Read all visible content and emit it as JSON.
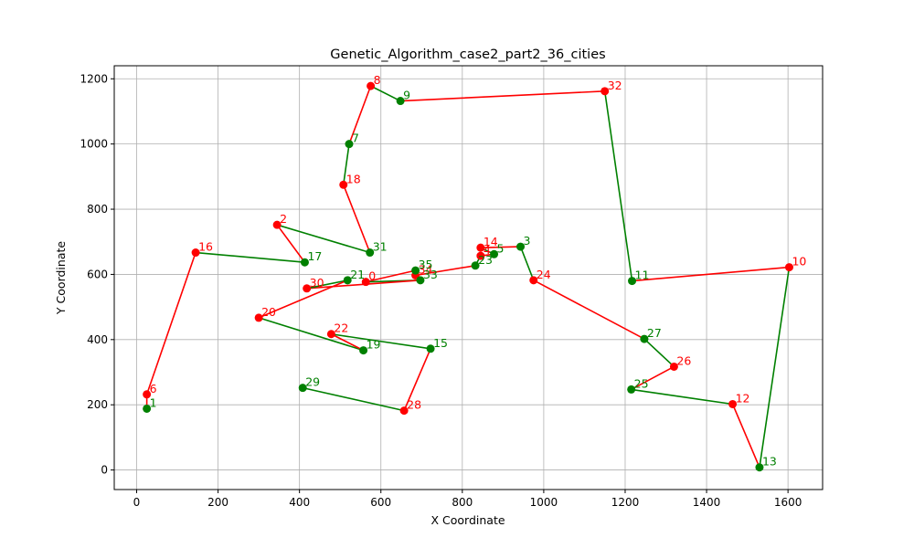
{
  "chart_data": {
    "type": "line",
    "title": "Genetic_Algorithm_case2_part2_36_cities",
    "xlabel": "X Coordinate",
    "ylabel": "Y Coordinate",
    "xlim": [
      -55,
      1685
    ],
    "ylim": [
      -60,
      1240
    ],
    "grid": true,
    "xticks": [
      0,
      200,
      400,
      600,
      800,
      1000,
      1200,
      1400,
      1600
    ],
    "yticks": [
      0,
      200,
      400,
      600,
      800,
      1000,
      1200
    ],
    "colors": {
      "red": "#ff0000",
      "green": "#008000",
      "grid": "#b0b0b0",
      "axis": "#000000"
    },
    "cities": [
      {
        "label": "1",
        "x": 25,
        "y": 188,
        "color": "green"
      },
      {
        "label": "6",
        "x": 25,
        "y": 232,
        "color": "red"
      },
      {
        "label": "16",
        "x": 145,
        "y": 667,
        "color": "red"
      },
      {
        "label": "17",
        "x": 413,
        "y": 637,
        "color": "green"
      },
      {
        "label": "2",
        "x": 345,
        "y": 752,
        "color": "red"
      },
      {
        "label": "31",
        "x": 573,
        "y": 667,
        "color": "green"
      },
      {
        "label": "18",
        "x": 508,
        "y": 875,
        "color": "red"
      },
      {
        "label": "7",
        "x": 522,
        "y": 1000,
        "color": "green"
      },
      {
        "label": "8",
        "x": 575,
        "y": 1178,
        "color": "red"
      },
      {
        "label": "9",
        "x": 648,
        "y": 1132,
        "color": "green"
      },
      {
        "label": "32",
        "x": 1150,
        "y": 1162,
        "color": "red"
      },
      {
        "label": "11",
        "x": 1217,
        "y": 580,
        "color": "green"
      },
      {
        "label": "10",
        "x": 1603,
        "y": 622,
        "color": "red"
      },
      {
        "label": "13",
        "x": 1530,
        "y": 8,
        "color": "green"
      },
      {
        "label": "12",
        "x": 1464,
        "y": 202,
        "color": "red"
      },
      {
        "label": "25",
        "x": 1215,
        "y": 247,
        "color": "green"
      },
      {
        "label": "26",
        "x": 1320,
        "y": 317,
        "color": "red"
      },
      {
        "label": "27",
        "x": 1247,
        "y": 402,
        "color": "green"
      },
      {
        "label": "24",
        "x": 975,
        "y": 582,
        "color": "red"
      },
      {
        "label": "3",
        "x": 943,
        "y": 685,
        "color": "green"
      },
      {
        "label": "14",
        "x": 845,
        "y": 682,
        "color": "red"
      },
      {
        "label": "5",
        "x": 878,
        "y": 662,
        "color": "green"
      },
      {
        "label": "4",
        "x": 845,
        "y": 657,
        "color": "red"
      },
      {
        "label": "23",
        "x": 832,
        "y": 627,
        "color": "green"
      },
      {
        "label": "34",
        "x": 685,
        "y": 597,
        "color": "red"
      },
      {
        "label": "35",
        "x": 685,
        "y": 612,
        "color": "green"
      },
      {
        "label": "0",
        "x": 563,
        "y": 577,
        "color": "red"
      },
      {
        "label": "33",
        "x": 697,
        "y": 582,
        "color": "green"
      },
      {
        "label": "30",
        "x": 418,
        "y": 557,
        "color": "red"
      },
      {
        "label": "21",
        "x": 518,
        "y": 582,
        "color": "green"
      },
      {
        "label": "20",
        "x": 300,
        "y": 467,
        "color": "red"
      },
      {
        "label": "19",
        "x": 557,
        "y": 367,
        "color": "green"
      },
      {
        "label": "22",
        "x": 478,
        "y": 417,
        "color": "red"
      },
      {
        "label": "15",
        "x": 722,
        "y": 372,
        "color": "green"
      },
      {
        "label": "28",
        "x": 657,
        "y": 182,
        "color": "red"
      },
      {
        "label": "29",
        "x": 408,
        "y": 252,
        "color": "green"
      }
    ]
  }
}
